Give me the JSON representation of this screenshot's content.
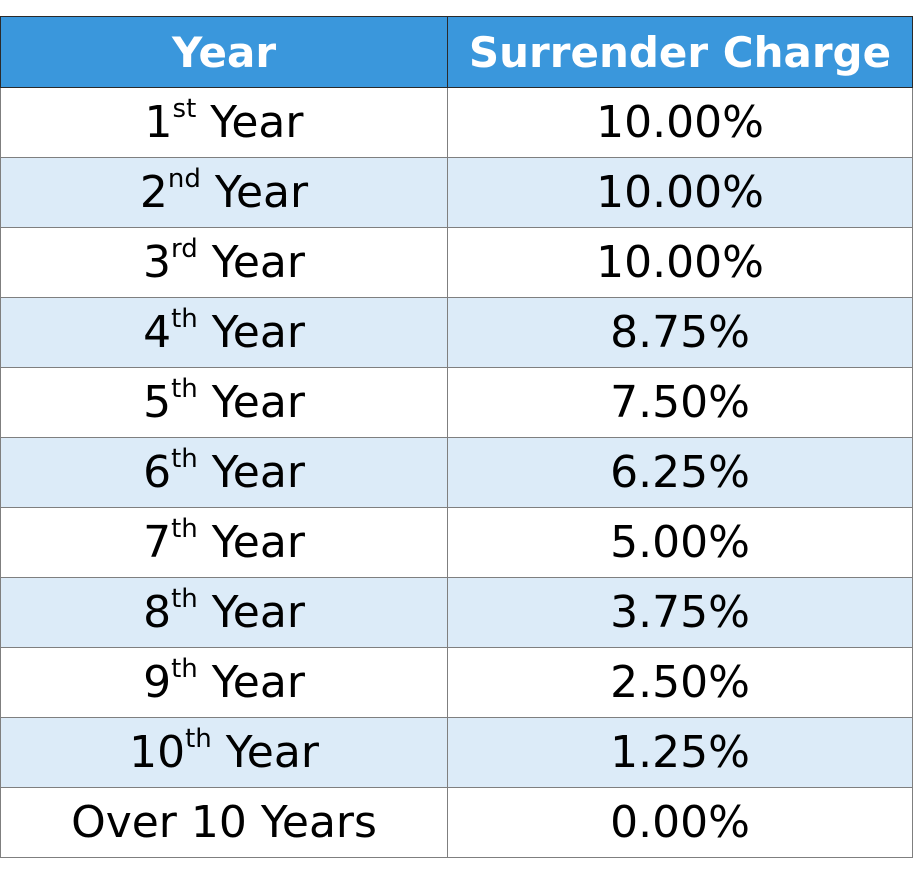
{
  "table": {
    "headers": {
      "year": "Year",
      "charge": "Surrender Charge"
    },
    "rows": [
      {
        "num": "1",
        "suffix": "st",
        "label": "Year",
        "charge": "10.00%"
      },
      {
        "num": "2",
        "suffix": "nd",
        "label": "Year",
        "charge": "10.00%"
      },
      {
        "num": "3",
        "suffix": "rd",
        "label": "Year",
        "charge": "10.00%"
      },
      {
        "num": "4",
        "suffix": "th",
        "label": "Year",
        "charge": "8.75%"
      },
      {
        "num": "5",
        "suffix": "th",
        "label": "Year",
        "charge": "7.50%"
      },
      {
        "num": "6",
        "suffix": "th",
        "label": "Year",
        "charge": "6.25%"
      },
      {
        "num": "7",
        "suffix": "th",
        "label": "Year",
        "charge": "5.00%"
      },
      {
        "num": "8",
        "suffix": "th",
        "label": "Year",
        "charge": "3.75%"
      },
      {
        "num": "9",
        "suffix": "th",
        "label": "Year",
        "charge": "2.50%"
      },
      {
        "num": "10",
        "suffix": "th",
        "label": "Year",
        "charge": "1.25%"
      }
    ],
    "final_row": {
      "year": "Over 10 Years",
      "charge": "0.00%"
    }
  },
  "colors": {
    "header_bg": "#3a97dc",
    "header_text": "#ffffff",
    "stripe": "#dcebf8"
  }
}
